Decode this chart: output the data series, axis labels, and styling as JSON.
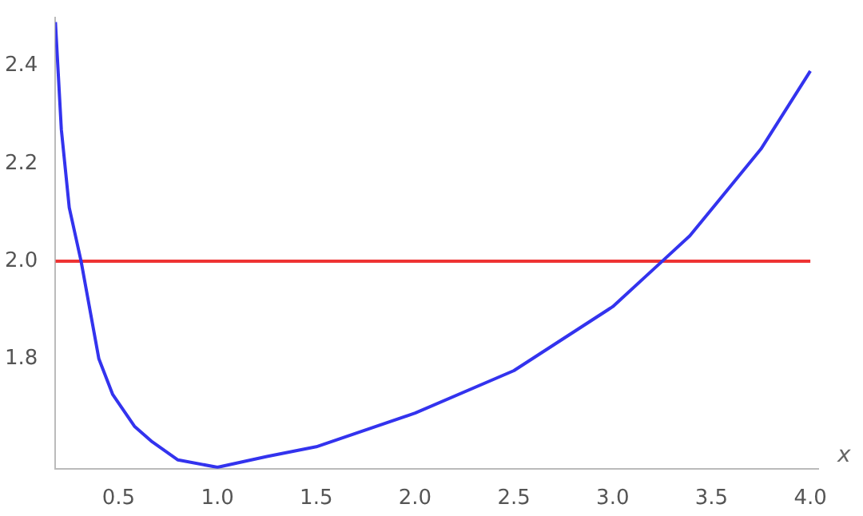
{
  "chart_data": {
    "type": "line",
    "xlabel": "x",
    "series": [
      {
        "color": "#3333ee",
        "x": [
          0.18,
          0.21,
          0.25,
          0.31,
          0.4,
          0.47,
          0.58,
          0.67,
          0.8,
          1.0,
          1.25,
          1.5,
          2.0,
          2.5,
          3.0,
          3.25,
          3.39,
          3.75,
          4.0
        ],
        "values": [
          2.49,
          2.27,
          2.11,
          2.0,
          1.8,
          1.727,
          1.662,
          1.63,
          1.593,
          1.578,
          1.6,
          1.62,
          1.689,
          1.776,
          1.907,
          2.0,
          2.052,
          2.23,
          2.39
        ]
      }
    ],
    "ref_lines": [
      {
        "axis": "y",
        "value": 2.0,
        "color": "#ee3333"
      }
    ],
    "xlim": [
      0.18,
      4.04
    ],
    "ylim": [
      1.575,
      2.5
    ],
    "xticks": [
      0.5,
      {
        "value": 1.0,
        "label": "1.0"
      },
      1.5,
      {
        "value": 2.0,
        "label": "2.0"
      },
      2.5,
      {
        "value": 3.0,
        "label": "3.0"
      },
      3.5,
      {
        "value": 4.0,
        "label": "4.0"
      }
    ],
    "yticks": [
      1.8,
      {
        "value": 2.0,
        "label": "2.0"
      },
      2.2,
      2.4
    ],
    "grid": false,
    "legend": false,
    "marker": "none",
    "line_style": "solid"
  }
}
